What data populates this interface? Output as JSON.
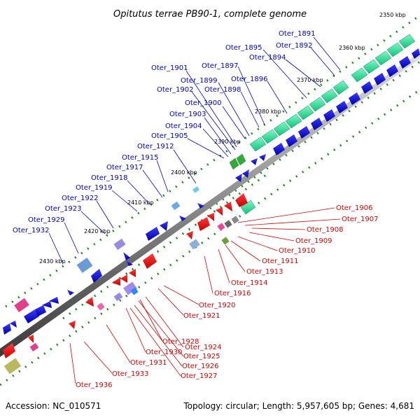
{
  "title": "Opitutus terrae PB90-1, complete genome",
  "footer": {
    "accession": "Accession: NC_010571",
    "summary": "Topology: circular; Length: 5,957,605 bp; Genes: 4,681"
  },
  "colors": {
    "forward_label": "#0000cc",
    "reverse_label": "#dd0000",
    "backbone": "#888888",
    "tick_green": "#1a8a1a"
  },
  "kbp_ticks": [
    "2350 kbp",
    "2360 kbp",
    "2370 kbp",
    "2380 kbp",
    "2390 kbp",
    "2400 kbp",
    "2410 kbp",
    "2420 kbp",
    "2430 kbp"
  ],
  "forward_genes": [
    "Oter_1891",
    "Oter_1892",
    "Oter_1894",
    "Oter_1895",
    "Oter_1896",
    "Oter_1897",
    "Oter_1898",
    "Oter_1899",
    "Oter_1900",
    "Oter_1901",
    "Oter_1902",
    "Oter_1903",
    "Oter_1904",
    "Oter_1905",
    "Oter_1912",
    "Oter_1915",
    "Oter_1917",
    "Oter_1918",
    "Oter_1919",
    "Oter_1922",
    "Oter_1923",
    "Oter_1929",
    "Oter_1932"
  ],
  "reverse_genes": [
    "Oter_1906",
    "Oter_1907",
    "Oter_1908",
    "Oter_1909",
    "Oter_1910",
    "Oter_1911",
    "Oter_1913",
    "Oter_1914",
    "Oter_1916",
    "Oter_1920",
    "Oter_1921",
    "Oter_1924",
    "Oter_1925",
    "Oter_1926",
    "Oter_1927",
    "Oter_1928",
    "Oter_1930",
    "Oter_1931",
    "Oter_1933",
    "Oter_1936"
  ]
}
